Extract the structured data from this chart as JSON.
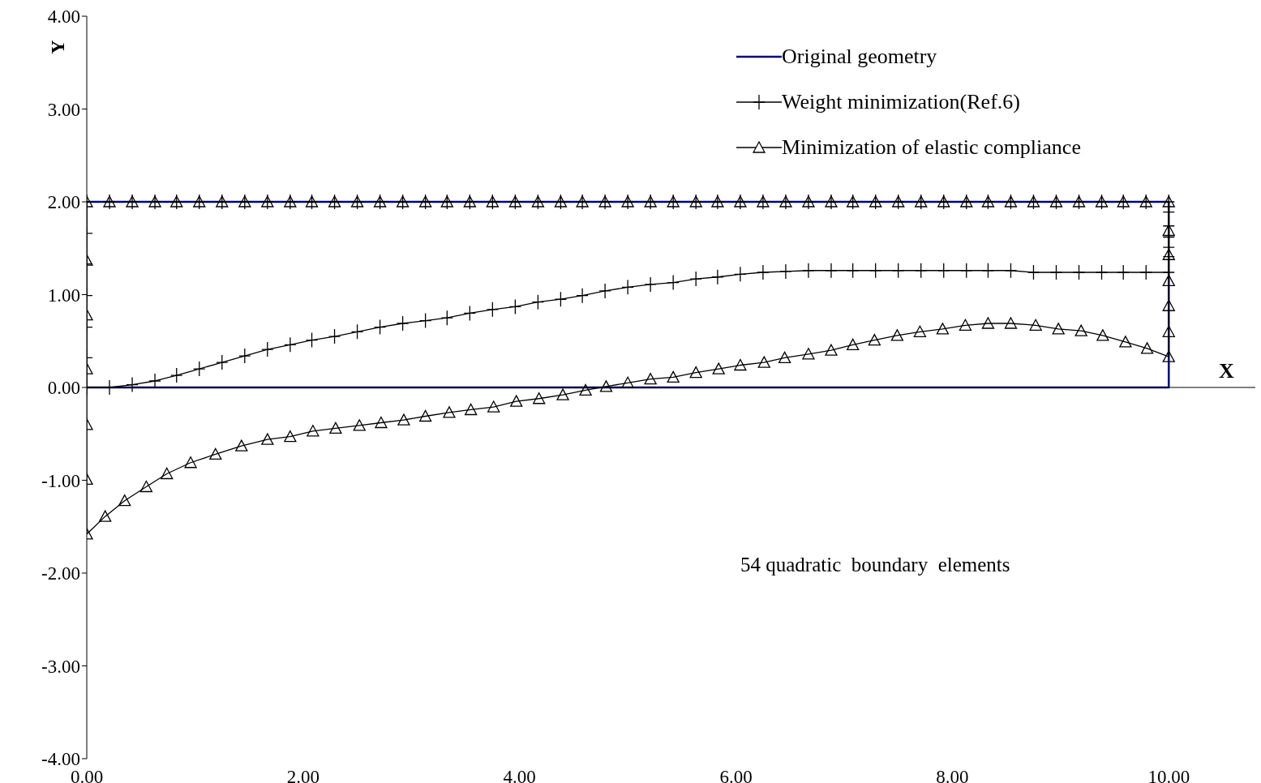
{
  "chart_data": {
    "type": "line",
    "xlabel": "X",
    "ylabel": "Y",
    "xlim": [
      0,
      10.8
    ],
    "ylim": [
      -4,
      4
    ],
    "xticks": [
      {
        "value": 0,
        "label": "0.00"
      },
      {
        "value": 2,
        "label": "2.00"
      },
      {
        "value": 4,
        "label": "4.00"
      },
      {
        "value": 6,
        "label": "6.00"
      },
      {
        "value": 8,
        "label": "8.00"
      },
      {
        "value": 10,
        "label": "10.00"
      }
    ],
    "yticks": [
      {
        "value": -4,
        "label": "-4.00"
      },
      {
        "value": -3,
        "label": "-3.00"
      },
      {
        "value": -2,
        "label": "-2.00"
      },
      {
        "value": -1,
        "label": "-1.00"
      },
      {
        "value": 0,
        "label": "0.00"
      },
      {
        "value": 1,
        "label": "1.00"
      },
      {
        "value": 2,
        "label": "2.00"
      },
      {
        "value": 3,
        "label": "3.00"
      },
      {
        "value": 4,
        "label": "4.00"
      }
    ],
    "grid": false,
    "legend": "top right",
    "line_style": "solid",
    "annotations": [
      "54 quadratic  boundary  elements"
    ],
    "series": [
      {
        "name": "Original geometry",
        "color": "#000080",
        "marker": "none",
        "x": [
          0,
          10,
          10
        ],
        "values": [
          0,
          0,
          2
        ]
      },
      {
        "color": "#000080",
        "marker": "none",
        "x": [
          0,
          10
        ],
        "values": [
          2,
          2
        ]
      },
      {
        "name": "Weight minimization(Ref.6)",
        "color": "#000000",
        "marker": "cross",
        "x": [
          0,
          0,
          0,
          0,
          0,
          0,
          0,
          0.21,
          0.42,
          0.63,
          0.83,
          1.04,
          1.25,
          1.46,
          1.67,
          1.88,
          2.08,
          2.29,
          2.5,
          2.71,
          2.92,
          3.13,
          3.33,
          3.54,
          3.75,
          3.96,
          4.17,
          4.38,
          4.58,
          4.79,
          5.0,
          5.21,
          5.42,
          5.63,
          5.83,
          6.04,
          6.25,
          6.46,
          6.67,
          6.88,
          7.08,
          7.29,
          7.5,
          7.71,
          7.92,
          8.13,
          8.33,
          8.54,
          8.75,
          8.96,
          9.17,
          9.38,
          9.58,
          9.79,
          10,
          10,
          10,
          10,
          10,
          10,
          10
        ],
        "values": [
          2,
          1.66,
          1.33,
          0.99,
          0.65,
          0.32,
          0,
          0.0,
          0.03,
          0.07,
          0.13,
          0.2,
          0.27,
          0.34,
          0.41,
          0.46,
          0.51,
          0.55,
          0.6,
          0.65,
          0.69,
          0.72,
          0.75,
          0.8,
          0.84,
          0.87,
          0.92,
          0.95,
          0.99,
          1.04,
          1.08,
          1.11,
          1.13,
          1.17,
          1.19,
          1.22,
          1.24,
          1.25,
          1.26,
          1.26,
          1.26,
          1.26,
          1.26,
          1.26,
          1.26,
          1.26,
          1.26,
          1.26,
          1.24,
          1.24,
          1.24,
          1.24,
          1.24,
          1.24,
          1.24,
          1.41,
          1.51,
          1.62,
          1.74,
          1.89,
          2
        ]
      },
      {
        "type": "scatter",
        "color": "#000000",
        "marker": "cross",
        "x": [
          0.21,
          0.42,
          0.63,
          0.83,
          1.04,
          1.25,
          1.46,
          1.67,
          1.88,
          2.08,
          2.29,
          2.5,
          2.71,
          2.92,
          3.13,
          3.33,
          3.54,
          3.75,
          3.96,
          4.17,
          4.38,
          4.58,
          4.79,
          5.0,
          5.21,
          5.42,
          5.63,
          5.83,
          6.04,
          6.25,
          6.46,
          6.67,
          6.88,
          7.08,
          7.29,
          7.5,
          7.71,
          7.92,
          8.13,
          8.33,
          8.54,
          8.75,
          8.96,
          9.17,
          9.38,
          9.58,
          9.79
        ],
        "values": [
          2,
          2,
          2,
          2,
          2,
          2,
          2,
          2,
          2,
          2,
          2,
          2,
          2,
          2,
          2,
          2,
          2,
          2,
          2,
          2,
          2,
          2,
          2,
          2,
          2,
          2,
          2,
          2,
          2,
          2,
          2,
          2,
          2,
          2,
          2,
          2,
          2,
          2,
          2,
          2,
          2,
          2,
          2,
          2,
          2,
          2,
          2
        ]
      },
      {
        "name": "Minimization of elastic compliance",
        "color": "#000000",
        "marker": "triangle",
        "x": [
          0,
          0,
          0,
          0,
          0,
          0,
          0,
          0.17,
          0.35,
          0.55,
          0.74,
          0.96,
          1.19,
          1.43,
          1.67,
          1.88,
          2.09,
          2.3,
          2.52,
          2.72,
          2.93,
          3.13,
          3.35,
          3.55,
          3.76,
          3.97,
          4.18,
          4.4,
          4.61,
          4.8,
          5.0,
          5.21,
          5.42,
          5.63,
          5.84,
          6.04,
          6.26,
          6.45,
          6.67,
          6.88,
          7.08,
          7.28,
          7.49,
          7.7,
          7.91,
          8.12,
          8.33,
          8.54,
          8.77,
          8.98,
          9.19,
          9.39,
          9.6,
          9.8,
          10,
          10,
          10,
          10,
          10,
          10,
          10
        ],
        "values": [
          2,
          1.37,
          0.78,
          0.2,
          -0.4,
          -0.99,
          -1.58,
          -1.39,
          -1.22,
          -1.07,
          -0.93,
          -0.81,
          -0.72,
          -0.63,
          -0.56,
          -0.53,
          -0.47,
          -0.44,
          -0.41,
          -0.38,
          -0.35,
          -0.31,
          -0.27,
          -0.24,
          -0.21,
          -0.15,
          -0.12,
          -0.08,
          -0.03,
          0.01,
          0.05,
          0.09,
          0.11,
          0.16,
          0.2,
          0.24,
          0.27,
          0.32,
          0.36,
          0.4,
          0.46,
          0.51,
          0.56,
          0.6,
          0.63,
          0.67,
          0.69,
          0.69,
          0.67,
          0.63,
          0.61,
          0.56,
          0.49,
          0.42,
          0.33,
          0.6,
          0.88,
          1.15,
          1.43,
          1.69,
          2.0
        ]
      },
      {
        "type": "scatter",
        "color": "#000000",
        "marker": "triangle",
        "x": [
          0.21,
          0.42,
          0.63,
          0.83,
          1.04,
          1.25,
          1.46,
          1.67,
          1.88,
          2.08,
          2.29,
          2.5,
          2.71,
          2.92,
          3.13,
          3.33,
          3.54,
          3.75,
          3.96,
          4.17,
          4.38,
          4.58,
          4.79,
          5.0,
          5.21,
          5.42,
          5.63,
          5.83,
          6.04,
          6.25,
          6.46,
          6.67,
          6.88,
          7.08,
          7.29,
          7.5,
          7.71,
          7.92,
          8.13,
          8.33,
          8.54,
          8.75,
          8.96,
          9.17,
          9.38,
          9.58,
          9.79
        ],
        "values": [
          2,
          2,
          2,
          2,
          2,
          2,
          2,
          2,
          2,
          2,
          2,
          2,
          2,
          2,
          2,
          2,
          2,
          2,
          2,
          2,
          2,
          2,
          2,
          2,
          2,
          2,
          2,
          2,
          2,
          2,
          2,
          2,
          2,
          2,
          2,
          2,
          2,
          2,
          2,
          2,
          2,
          2,
          2,
          2,
          2,
          2,
          2
        ]
      }
    ]
  }
}
